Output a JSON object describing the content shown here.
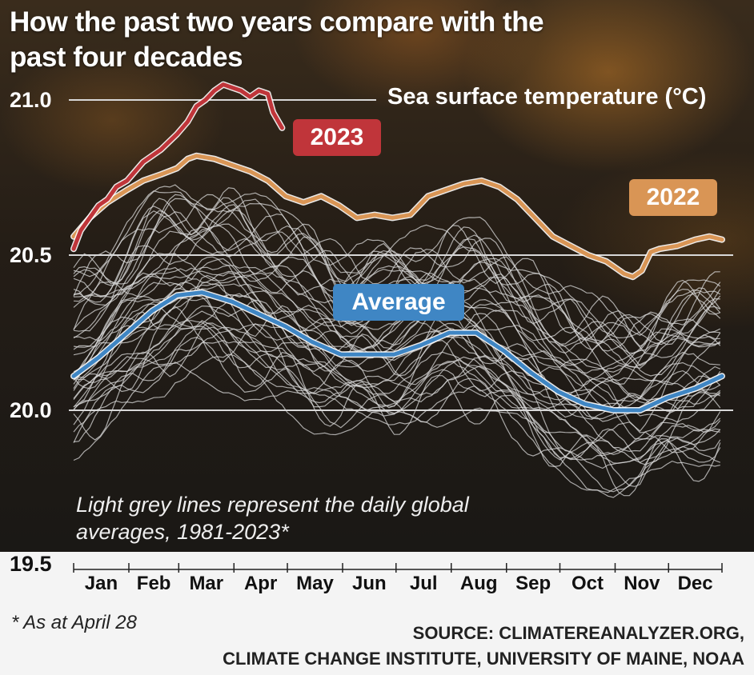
{
  "title": "How the past two years compare with the past four decades",
  "note": "Light grey lines represent the daily global averages, 1981-2023*",
  "footnote": "* As at April 28",
  "source_line1": "SOURCE: CLIMATEREANALYZER.ORG,",
  "source_line2": "CLIMATE CHANGE INSTITUTE, UNIVERSITY OF MAINE, NOAA",
  "colors": {
    "y2023": "#c0353a",
    "y2022": "#d99555",
    "average": "#3f86c4",
    "history": "#d9d9d9"
  },
  "chart_data": {
    "type": "line",
    "title": "How the past two years compare with the past four decades",
    "ylabel": "Sea surface temperature (°C)",
    "y_ticks": [
      "21.0",
      "20.5",
      "20.0",
      "19.5"
    ],
    "y_tick_values": [
      21.0,
      20.5,
      20.0,
      19.5
    ],
    "ylim": [
      19.5,
      21.1
    ],
    "x_ticks": [
      "Jan",
      "Feb",
      "Mar",
      "Apr",
      "May",
      "Jun",
      "Jul",
      "Aug",
      "Sep",
      "Oct",
      "Nov",
      "Dec"
    ],
    "grid": true,
    "series": [
      {
        "name": "2023",
        "x": [
          1,
          5,
          10,
          15,
          20,
          25,
          31,
          40,
          50,
          59,
          65,
          70,
          75,
          80,
          85,
          90,
          95,
          100,
          105,
          110,
          113,
          118
        ],
        "y": [
          20.52,
          20.58,
          20.62,
          20.66,
          20.68,
          20.72,
          20.74,
          20.8,
          20.84,
          20.89,
          20.93,
          20.98,
          21.0,
          21.03,
          21.05,
          21.04,
          21.03,
          21.01,
          21.03,
          21.02,
          20.96,
          20.91
        ]
      },
      {
        "name": "2022",
        "x": [
          1,
          10,
          20,
          31,
          40,
          50,
          59,
          65,
          70,
          80,
          90,
          100,
          110,
          120,
          130,
          140,
          150,
          160,
          170,
          180,
          190,
          200,
          210,
          220,
          230,
          240,
          250,
          260,
          270,
          280,
          290,
          300,
          305,
          310,
          315,
          320,
          325,
          330,
          340,
          350,
          358,
          365
        ],
        "y": [
          20.56,
          20.62,
          20.67,
          20.71,
          20.74,
          20.76,
          20.78,
          20.81,
          20.82,
          20.81,
          20.79,
          20.77,
          20.74,
          20.69,
          20.67,
          20.69,
          20.66,
          20.62,
          20.63,
          20.62,
          20.63,
          20.69,
          20.71,
          20.73,
          20.74,
          20.72,
          20.68,
          20.62,
          20.56,
          20.53,
          20.5,
          20.48,
          20.46,
          20.44,
          20.43,
          20.45,
          20.51,
          20.52,
          20.53,
          20.55,
          20.56,
          20.55
        ]
      },
      {
        "name": "Average",
        "x": [
          1,
          15,
          31,
          45,
          59,
          73,
          90,
          105,
          120,
          135,
          151,
          166,
          181,
          196,
          212,
          227,
          243,
          258,
          273,
          288,
          304,
          319,
          334,
          350,
          365
        ],
        "y": [
          20.11,
          20.17,
          20.25,
          20.32,
          20.37,
          20.38,
          20.35,
          20.31,
          20.27,
          20.22,
          20.18,
          20.18,
          20.18,
          20.21,
          20.25,
          20.25,
          20.19,
          20.12,
          20.06,
          20.02,
          20.0,
          20.0,
          20.04,
          20.07,
          20.11
        ]
      }
    ]
  }
}
